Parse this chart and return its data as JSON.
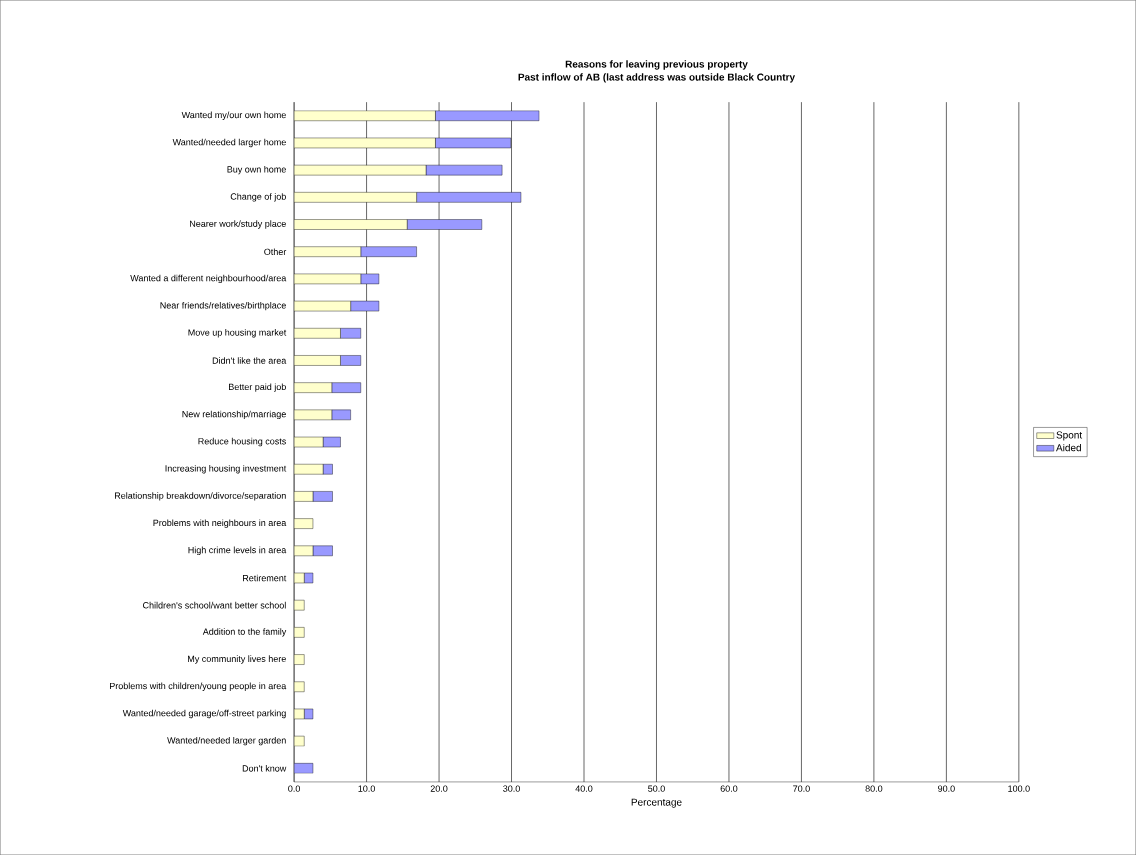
{
  "chart_data": {
    "type": "bar",
    "orientation": "horizontal",
    "stacked": true,
    "title": "Reasons for leaving previous property",
    "subtitle": "Past inflow of  AB (last address was outside Black Country",
    "xlabel": "Percentage",
    "categories": [
      "Wanted my/our own home",
      "Wanted/needed larger home",
      "Buy own home",
      "Change of job",
      "Nearer work/study place",
      "Other",
      "Wanted a different neighbourhood/area",
      "Near friends/relatives/birthplace",
      "Move up housing market",
      "Didn't like the area",
      "Better paid job",
      "New relationship/marriage",
      "Reduce housing costs",
      "Increasing housing investment",
      "Relationship breakdown/divorce/separation",
      "Problems with neighbours in area",
      "High crime levels in area",
      "Retirement",
      "Children's school/want better school",
      "Addition to the family",
      "My community lives here",
      "Problems with children/young people in area",
      "Wanted/needed garage/off-street parking",
      "Wanted/needed larger garden",
      "Don't know"
    ],
    "series": [
      {
        "name": "Spont",
        "color": "#ffffcc",
        "values": [
          19.5,
          19.5,
          18.2,
          16.9,
          15.6,
          9.2,
          9.2,
          7.8,
          6.4,
          6.4,
          5.2,
          5.2,
          4.0,
          4.0,
          2.6,
          2.6,
          2.6,
          1.4,
          1.4,
          1.4,
          1.4,
          1.4,
          1.4,
          1.4,
          null
        ]
      },
      {
        "name": "Aided",
        "color": "#9999ff",
        "values": [
          14.3,
          10.4,
          10.5,
          14.4,
          10.3,
          7.7,
          2.5,
          3.9,
          2.8,
          2.8,
          4.0,
          2.6,
          2.4,
          1.3,
          2.7,
          null,
          2.7,
          1.2,
          null,
          null,
          null,
          null,
          1.2,
          null,
          2.6
        ]
      }
    ],
    "xlim": [
      0,
      100
    ],
    "xticks": [
      {
        "value": 0,
        "label": "0.0"
      },
      {
        "value": 10,
        "label": "10.0"
      },
      {
        "value": 20,
        "label": "20.0"
      },
      {
        "value": 30,
        "label": "30.0"
      },
      {
        "value": 40,
        "label": "40.0"
      },
      {
        "value": 50,
        "label": "50.0"
      },
      {
        "value": 60,
        "label": "60.0"
      },
      {
        "value": 70,
        "label": "70.0"
      },
      {
        "value": 80,
        "label": "80.0"
      },
      {
        "value": 90,
        "label": "90.0"
      },
      {
        "value": 100,
        "label": "100.0"
      }
    ],
    "grid": "x",
    "legend": "right"
  }
}
